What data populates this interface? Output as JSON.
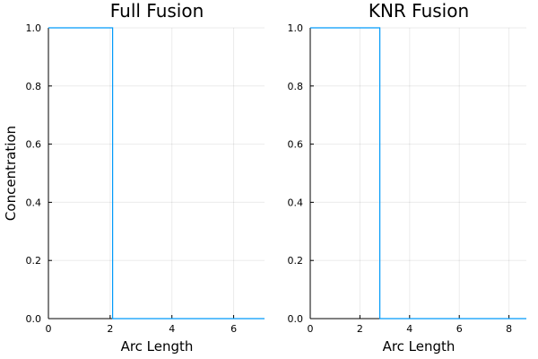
{
  "series_color": "#009af9",
  "chart_data": [
    {
      "type": "line",
      "title": "Full Fusion",
      "xlabel": "Arc Length",
      "ylabel": "Concentration",
      "xlim": [
        0,
        7
      ],
      "ylim": [
        0,
        1
      ],
      "xticks": [
        0,
        2,
        4,
        6
      ],
      "yticks": [
        0.0,
        0.2,
        0.4,
        0.6,
        0.8,
        1.0
      ],
      "xtick_labels": [
        "0",
        "2",
        "4",
        "6"
      ],
      "ytick_labels": [
        "0.0",
        "0.2",
        "0.4",
        "0.6",
        "0.8",
        "1.0"
      ],
      "grid": true,
      "series": [
        {
          "x": [
            0,
            2.08,
            2.08,
            7
          ],
          "y": [
            1,
            1,
            0,
            0
          ]
        }
      ]
    },
    {
      "type": "line",
      "title": "KNR Fusion",
      "xlabel": "Arc Length",
      "ylabel": "",
      "xlim": [
        0,
        8.7
      ],
      "ylim": [
        0,
        1
      ],
      "xticks": [
        0,
        2,
        4,
        6,
        8
      ],
      "yticks": [
        0.0,
        0.2,
        0.4,
        0.6,
        0.8,
        1.0
      ],
      "xtick_labels": [
        "0",
        "2",
        "4",
        "6",
        "8"
      ],
      "ytick_labels": [
        "0.0",
        "0.2",
        "0.4",
        "0.6",
        "0.8",
        "1.0"
      ],
      "grid": true,
      "series": [
        {
          "x": [
            0,
            2.8,
            2.8,
            8.7
          ],
          "y": [
            1,
            1,
            0,
            0
          ]
        }
      ]
    }
  ]
}
